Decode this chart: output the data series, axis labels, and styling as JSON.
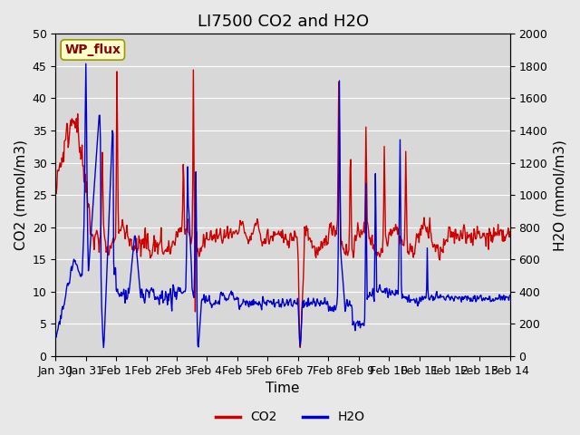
{
  "title": "LI7500 CO2 and H2O",
  "xlabel": "Time",
  "ylabel_left": "CO2 (mmol/m3)",
  "ylabel_right": "H2O (mmol/m3)",
  "ylim_left": [
    0,
    50
  ],
  "ylim_right": [
    0,
    2000
  ],
  "yticks_left": [
    0,
    5,
    10,
    15,
    20,
    25,
    30,
    35,
    40,
    45,
    50
  ],
  "yticks_right": [
    0,
    200,
    400,
    600,
    800,
    1000,
    1200,
    1400,
    1600,
    1800,
    2000
  ],
  "xtick_labels": [
    "Jan 30",
    "Jan 31",
    "Feb 1",
    "Feb 2",
    "Feb 3",
    "Feb 4",
    "Feb 5",
    "Feb 6",
    "Feb 7",
    "Feb 8",
    "Feb 9",
    "Feb 10",
    "Feb 11",
    "Feb 12",
    "Feb 13",
    "Feb 14"
  ],
  "co2_color": "#cc0000",
  "h2o_color": "#0000cc",
  "bg_color": "#e8e8e8",
  "plot_bg_color": "#d8d8d8",
  "legend_co2": "CO2",
  "legend_h2o": "H2O",
  "watermark_text": "WP_flux",
  "watermark_color": "#8b0000",
  "watermark_bg": "#ffffcc",
  "title_fontsize": 13,
  "axis_fontsize": 11,
  "tick_fontsize": 9
}
